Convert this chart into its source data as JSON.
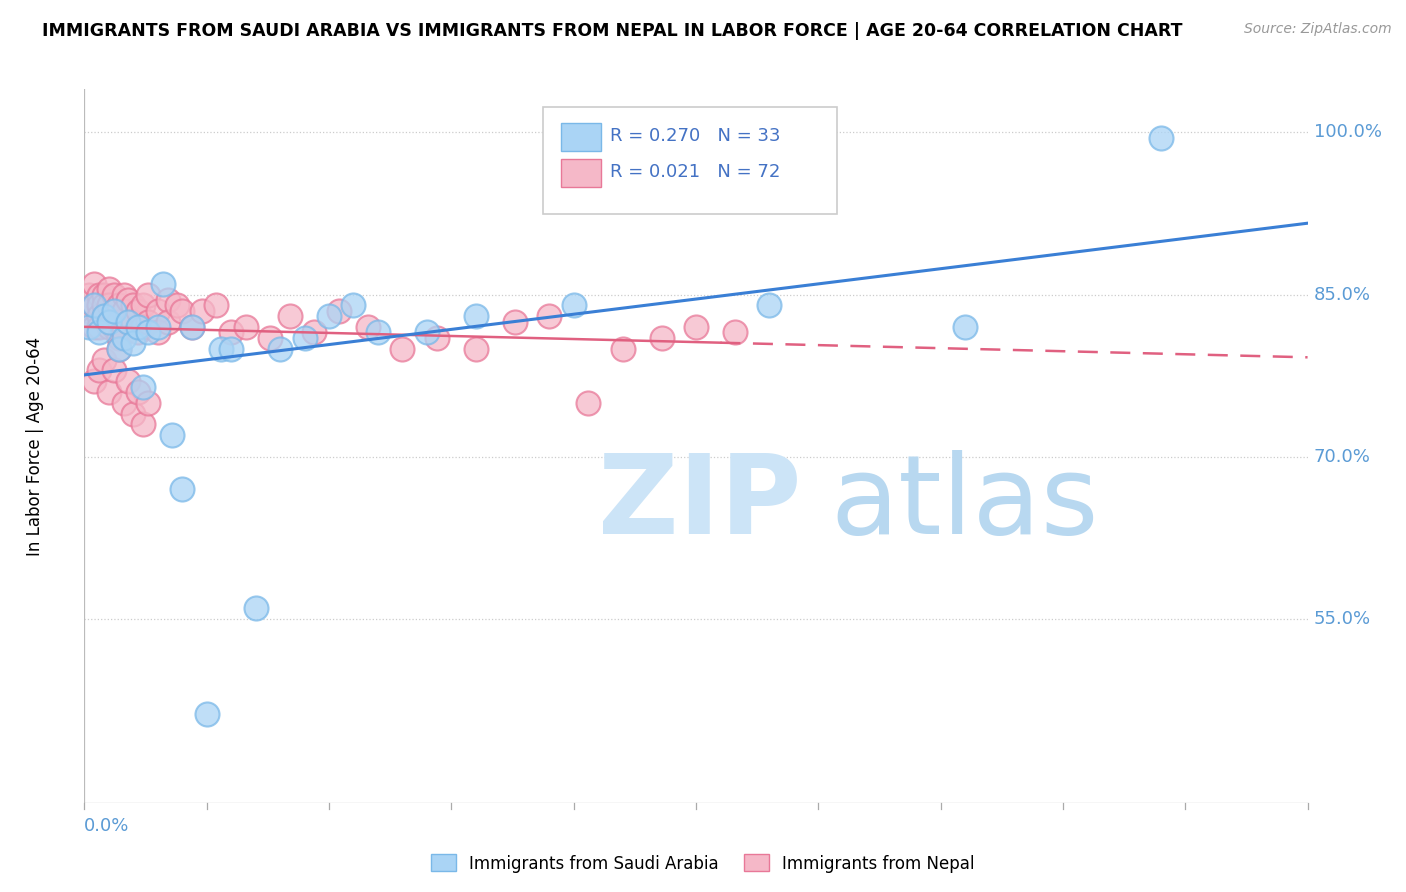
{
  "title": "IMMIGRANTS FROM SAUDI ARABIA VS IMMIGRANTS FROM NEPAL IN LABOR FORCE | AGE 20-64 CORRELATION CHART",
  "source": "Source: ZipAtlas.com",
  "ylabel": "In Labor Force | Age 20-64",
  "ytick_vals": [
    0.55,
    0.7,
    0.85,
    1.0
  ],
  "ytick_labels": [
    "55.0%",
    "70.0%",
    "85.0%",
    "100.0%"
  ],
  "xlim": [
    0.0,
    0.25
  ],
  "ylim": [
    0.38,
    1.04
  ],
  "saudi_color": "#aad4f5",
  "saudi_edge": "#7ab8e8",
  "nepal_color": "#f5b8c8",
  "nepal_edge": "#e87898",
  "trend_blue": "#3a7fd5",
  "trend_pink": "#e06080",
  "saudi_R": 0.27,
  "saudi_N": 33,
  "nepal_R": 0.021,
  "nepal_N": 72,
  "watermark_zip_color": "#cce4f7",
  "watermark_atlas_color": "#b8d8f0",
  "legend_R_color": "#4472c4",
  "legend_N_color": "#33aa33",
  "saudi_x": [
    0.001,
    0.002,
    0.003,
    0.004,
    0.005,
    0.006,
    0.007,
    0.008,
    0.009,
    0.01,
    0.011,
    0.012,
    0.013,
    0.015,
    0.016,
    0.018,
    0.02,
    0.022,
    0.025,
    0.028,
    0.03,
    0.035,
    0.04,
    0.045,
    0.05,
    0.055,
    0.06,
    0.07,
    0.08,
    0.1,
    0.14,
    0.18,
    0.22
  ],
  "saudi_y": [
    0.82,
    0.84,
    0.815,
    0.83,
    0.825,
    0.835,
    0.8,
    0.81,
    0.825,
    0.805,
    0.82,
    0.765,
    0.815,
    0.82,
    0.86,
    0.72,
    0.67,
    0.82,
    0.462,
    0.8,
    0.8,
    0.56,
    0.8,
    0.81,
    0.83,
    0.84,
    0.815,
    0.815,
    0.83,
    0.84,
    0.84,
    0.82,
    0.995
  ],
  "nepal_x": [
    0.001,
    0.001,
    0.002,
    0.002,
    0.002,
    0.003,
    0.003,
    0.003,
    0.003,
    0.004,
    0.004,
    0.004,
    0.005,
    0.005,
    0.005,
    0.006,
    0.006,
    0.006,
    0.007,
    0.007,
    0.007,
    0.008,
    0.008,
    0.008,
    0.009,
    0.009,
    0.01,
    0.01,
    0.011,
    0.011,
    0.012,
    0.012,
    0.013,
    0.013,
    0.015,
    0.015,
    0.017,
    0.017,
    0.019,
    0.02,
    0.022,
    0.024,
    0.027,
    0.03,
    0.033,
    0.038,
    0.042,
    0.047,
    0.052,
    0.058,
    0.065,
    0.072,
    0.08,
    0.088,
    0.095,
    0.103,
    0.11,
    0.118,
    0.125,
    0.133,
    0.002,
    0.003,
    0.004,
    0.005,
    0.006,
    0.007,
    0.008,
    0.009,
    0.01,
    0.011,
    0.012,
    0.013
  ],
  "nepal_y": [
    0.85,
    0.835,
    0.86,
    0.84,
    0.82,
    0.85,
    0.84,
    0.83,
    0.82,
    0.85,
    0.84,
    0.83,
    0.855,
    0.84,
    0.82,
    0.85,
    0.835,
    0.82,
    0.84,
    0.825,
    0.81,
    0.85,
    0.835,
    0.815,
    0.845,
    0.825,
    0.84,
    0.825,
    0.835,
    0.815,
    0.84,
    0.82,
    0.85,
    0.825,
    0.835,
    0.815,
    0.845,
    0.825,
    0.84,
    0.835,
    0.82,
    0.835,
    0.84,
    0.815,
    0.82,
    0.81,
    0.83,
    0.815,
    0.835,
    0.82,
    0.8,
    0.81,
    0.8,
    0.825,
    0.83,
    0.75,
    0.8,
    0.81,
    0.82,
    0.815,
    0.77,
    0.78,
    0.79,
    0.76,
    0.78,
    0.8,
    0.75,
    0.77,
    0.74,
    0.76,
    0.73,
    0.75
  ]
}
